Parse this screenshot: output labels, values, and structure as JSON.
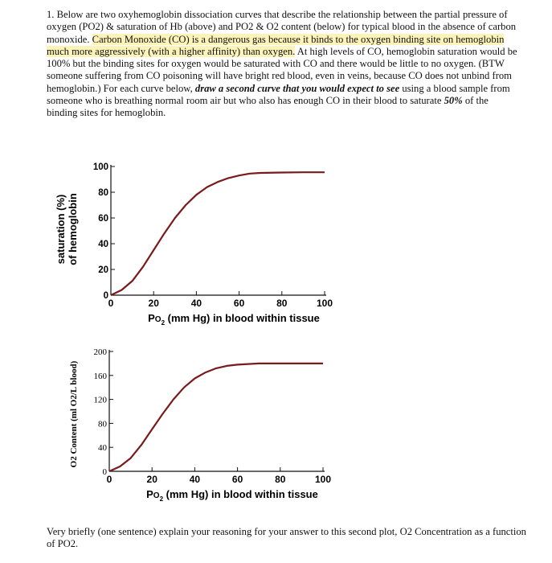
{
  "question": {
    "p1": "1. Below are two oxyhemoglobin dissociation curves that describe the relationship between the partial pressure of oxygen (PO2) & saturation of Hb (above) and PO2 & O2 content (below) for typical blood in the absence of carbon monoxide. ",
    "highlight": "Carbon Monoxide (CO) is a dangerous gas because it binds to the oxygen binding site on hemoglobin much more aggressively (with a higher affinity) than oxygen.",
    "p2": " At high levels of CO, hemoglobin saturation would be 100% but the binding sites for oxygen would be saturated with CO and there would be little to no oxygen. (BTW someone suffering from CO poisoning will have bright red blood, even in veins, because CO does not unbind from hemoglobin.) For each curve below, ",
    "emph1": "draw a second curve that you would expect to see",
    "p3": " using a blood sample from someone who is breathing normal room air but who also has enough CO in their blood to saturate ",
    "emph2": "50%",
    "p4": " of the binding sites for hemoglobin."
  },
  "chart_data": [
    {
      "type": "line",
      "ylabel_line1": "saturation (%)",
      "ylabel_line2": "of hemoglobin",
      "xlabel_main": "P",
      "xlabel_sub": "O",
      "xlabel_sub2": "2",
      "xlabel_rest": " (mm Hg) in blood within tissue",
      "xlim": [
        0,
        100
      ],
      "ylim": [
        0,
        100
      ],
      "xticks": [
        "0",
        "20",
        "40",
        "60",
        "80",
        "100"
      ],
      "yticks": [
        "0",
        "20",
        "40",
        "60",
        "80",
        "100"
      ],
      "line_color": "#7a1a1a",
      "x": [
        0,
        5,
        10,
        15,
        20,
        25,
        30,
        35,
        40,
        45,
        50,
        55,
        60,
        65,
        70,
        80,
        90,
        100
      ],
      "y": [
        0,
        4,
        11,
        22,
        35,
        48,
        60,
        70,
        78,
        84,
        88,
        91,
        93,
        94.5,
        95,
        95.3,
        95.5,
        95.5
      ]
    },
    {
      "type": "line",
      "ylabel": "O2 Content (ml O2/L blood)",
      "xlabel_main": "P",
      "xlabel_sub": "O",
      "xlabel_sub2": "2",
      "xlabel_rest": " (mm Hg) in blood within tissue",
      "xlim": [
        0,
        100
      ],
      "ylim": [
        0,
        200
      ],
      "xticks": [
        "0",
        "20",
        "40",
        "60",
        "80",
        "100"
      ],
      "yticks": [
        "0",
        "40",
        "80",
        "120",
        "160",
        "200"
      ],
      "line_color": "#7a1a1a",
      "x": [
        0,
        5,
        10,
        15,
        20,
        25,
        30,
        35,
        40,
        45,
        50,
        55,
        60,
        65,
        70,
        80,
        90,
        100
      ],
      "y": [
        0,
        8,
        22,
        44,
        70,
        96,
        120,
        140,
        155,
        165,
        172,
        176,
        178,
        179,
        180,
        180,
        180,
        180
      ]
    }
  ],
  "footer": "Very briefly (one sentence) explain your reasoning for your answer to this second plot, O2 Concentration as a function of PO2."
}
